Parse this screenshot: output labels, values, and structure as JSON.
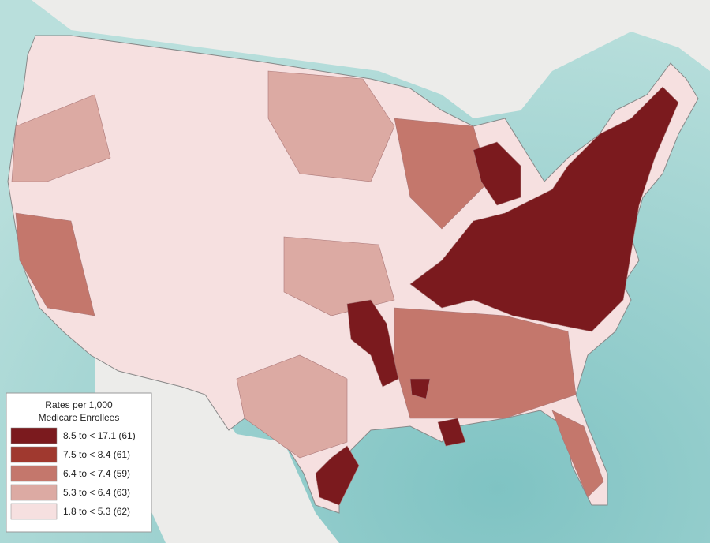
{
  "legend": {
    "title": [
      "Rates per 1,000",
      "Medicare Enrollees"
    ],
    "items": [
      {
        "label": "8.5 to < 17.1 (61)",
        "color": "#7b1a1e"
      },
      {
        "label": "7.5 to < 8.4 (61)",
        "color": "#a0392f"
      },
      {
        "label": "6.4 to < 7.4 (59)",
        "color": "#c4776c"
      },
      {
        "label": "5.3 to < 6.4 (63)",
        "color": "#dcaaa3"
      },
      {
        "label": "1.8 to < 5.3 (62)",
        "color": "#f6e0e0"
      }
    ]
  }
}
